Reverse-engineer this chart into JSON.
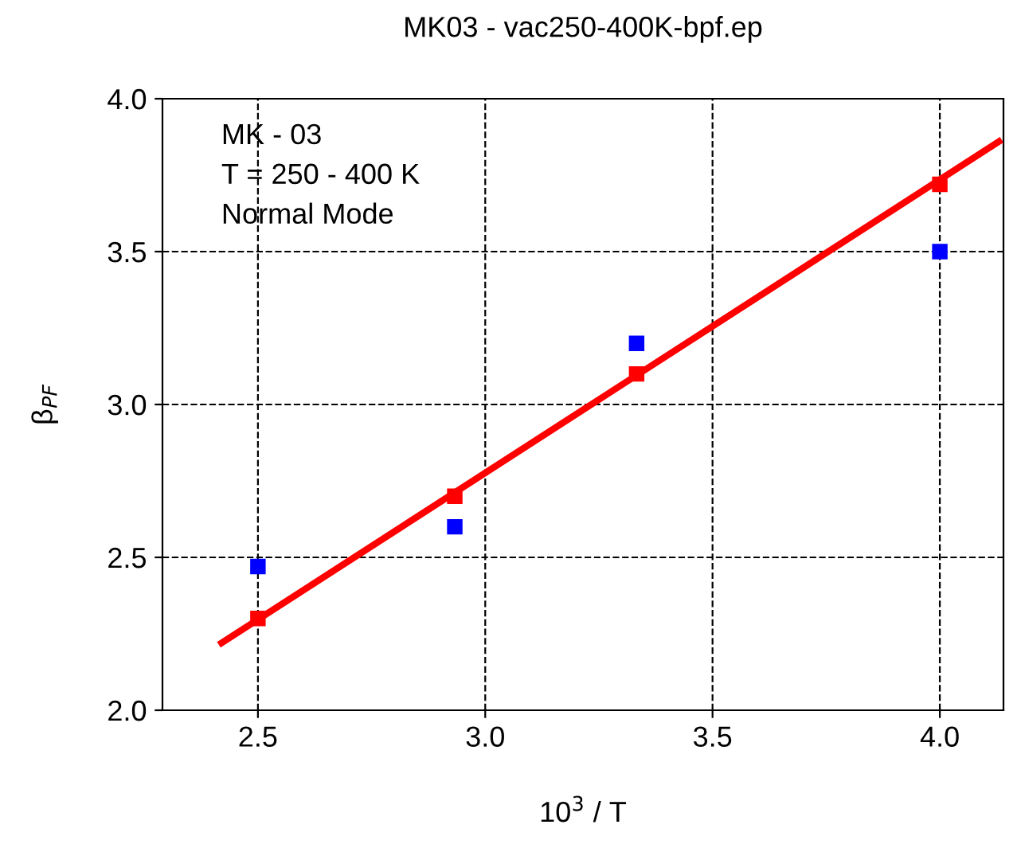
{
  "chart_data": {
    "type": "scatter",
    "title": "MK03 - vac250-400K-bpf.ep",
    "xlabel": "10$^{3}$ / T",
    "ylabel": "β$_{PF}$",
    "annotations": [
      "MK - 03",
      "T = 250 - 400 K",
      "Normal Mode"
    ],
    "xlim": [
      2.29,
      4.14
    ],
    "ylim": [
      2.0,
      4.0
    ],
    "xticks": [
      2.5,
      {
        "value": 3,
        "label": "3.0"
      },
      3.5,
      {
        "value": 4,
        "label": "4.0"
      }
    ],
    "yticks": [
      {
        "value": 2,
        "label": "2.0"
      },
      2.5,
      {
        "value": 3,
        "label": "3.0"
      },
      3.5,
      {
        "value": 4,
        "label": "4.0"
      }
    ],
    "grid": true,
    "marker": "square",
    "series": [
      {
        "color": "#0000ff",
        "x": [
          2.5,
          2.933,
          3.333,
          4.0
        ],
        "values": [
          2.47,
          2.6,
          3.2,
          3.5
        ]
      },
      {
        "type": "line",
        "color": "#ff0000",
        "x": [
          2.42,
          4.13
        ],
        "values": [
          2.22,
          3.86
        ],
        "marker": "none"
      },
      {
        "color": "#ff0000",
        "x": [
          2.5,
          2.933,
          3.333,
          4.0
        ],
        "values": [
          2.3,
          2.7,
          3.1,
          3.72
        ]
      }
    ]
  }
}
